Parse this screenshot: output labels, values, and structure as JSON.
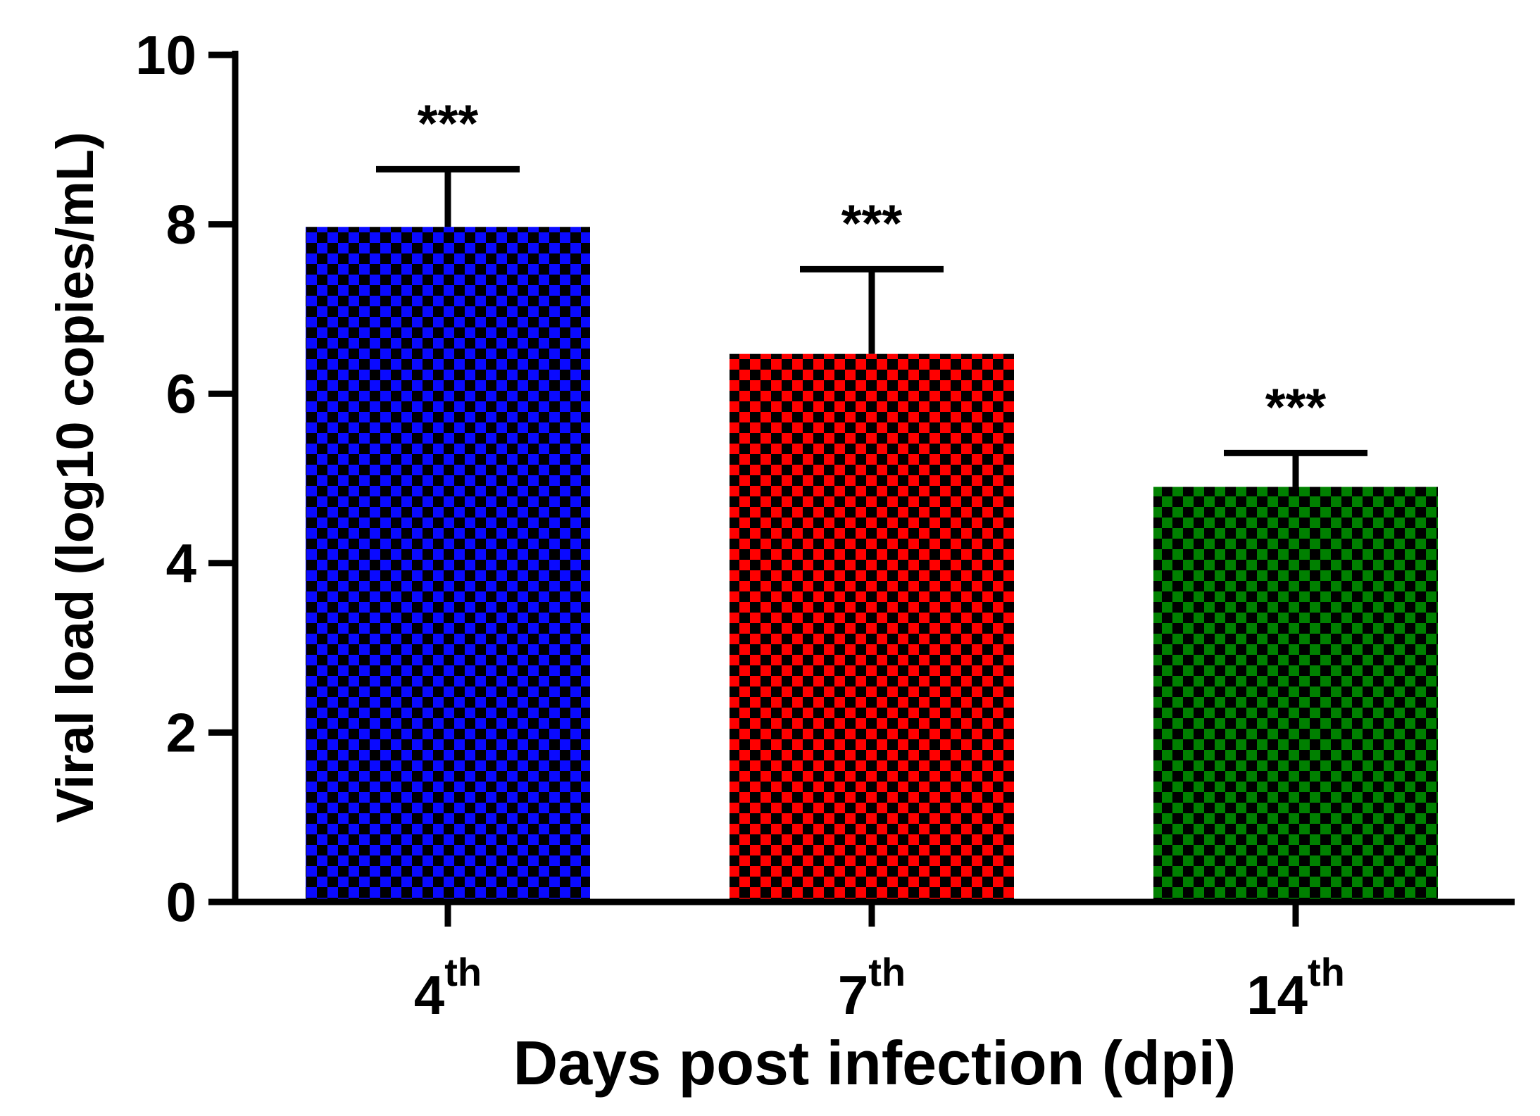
{
  "chart_data": {
    "type": "bar",
    "title": "",
    "xlabel": "Days post infection (dpi)",
    "ylabel": "Viral load (log10 copies/mL)",
    "ylim": [
      0,
      10
    ],
    "yticks": [
      "0",
      "2",
      "4",
      "6",
      "8",
      "10"
    ],
    "grid": false,
    "legend": "none",
    "categories": [
      {
        "main": "4",
        "sup": "th"
      },
      {
        "main": "7",
        "sup": "th"
      },
      {
        "main": "14",
        "sup": "th"
      }
    ],
    "values": [
      7.97,
      6.47,
      4.9
    ],
    "errors": [
      0.68,
      1.0,
      0.4
    ],
    "significance": [
      "***",
      "***",
      "***"
    ],
    "colors": [
      "#0a0aff",
      "#ff0000",
      "#008000"
    ],
    "pattern_color": "#000000"
  }
}
